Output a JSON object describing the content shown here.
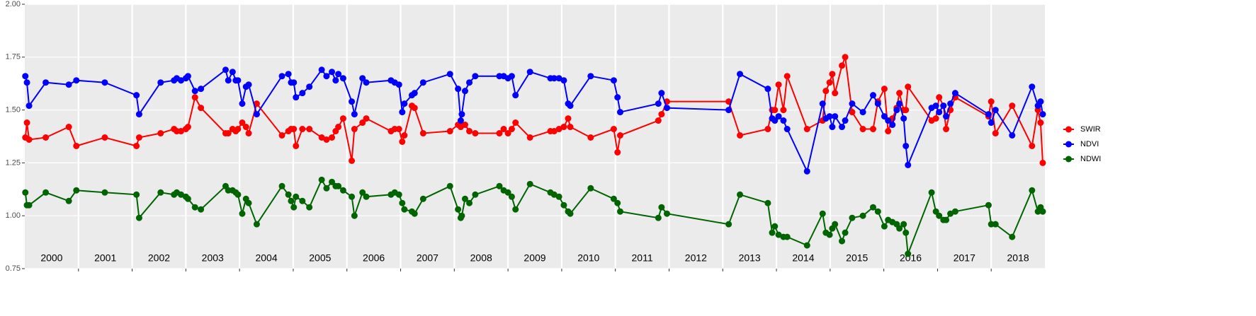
{
  "chart_data": {
    "type": "line",
    "xlim": [
      2000,
      2019
    ],
    "xticks": [
      2001,
      2002,
      2003,
      2004,
      2005,
      2006,
      2007,
      2008,
      2009,
      2010,
      2011,
      2012,
      2013,
      2014,
      2015,
      2016,
      2017,
      2018
    ],
    "ylim": [
      0.75,
      2
    ],
    "yticks": [
      0.75,
      {
        "value": 1,
        "label": "1.00"
      },
      1.25,
      {
        "value": 1.5,
        "label": "1.50"
      },
      1.75,
      {
        "value": 2,
        "label": "2.00"
      }
    ],
    "grid": true,
    "legend": "right",
    "year_labels": [
      "2000",
      "2001",
      "2002",
      "2003",
      "2004",
      "2005",
      "2006",
      "2007",
      "2008",
      "2009",
      "2010",
      "2011",
      "2012",
      "2013",
      "2014",
      "2015",
      "2016",
      "2017",
      "2018"
    ],
    "x": [
      2000.01,
      2000.04,
      2000.08,
      2000.39,
      2000.82,
      2000.96,
      2001.49,
      2002.08,
      2002.13,
      2002.53,
      2002.78,
      2002.83,
      2002.91,
      2003.0,
      2003.04,
      2003.17,
      2003.28,
      2003.74,
      2003.79,
      2003.87,
      2003.93,
      2003.97,
      2004.05,
      2004.12,
      2004.17,
      2004.32,
      2004.79,
      2004.91,
      2004.96,
      2005.01,
      2005.05,
      2005.17,
      2005.3,
      2005.53,
      2005.62,
      2005.72,
      2005.79,
      2005.84,
      2005.93,
      2006.09,
      2006.14,
      2006.29,
      2006.36,
      2006.82,
      2006.89,
      2006.97,
      2007.03,
      2007.07,
      2007.21,
      2007.26,
      2007.42,
      2007.92,
      2008.07,
      2008.12,
      2008.14,
      2008.2,
      2008.28,
      2008.39,
      2008.84,
      2008.92,
      2009.0,
      2009.07,
      2009.14,
      2009.41,
      2009.79,
      2009.86,
      2009.95,
      2010.04,
      2010.12,
      2010.16,
      2010.54,
      2010.97,
      2011.04,
      2011.09,
      2011.8,
      2011.86,
      2011.96,
      2013.11,
      2013.32,
      2013.84,
      2013.92,
      2013.97,
      2014.04,
      2014.13,
      2014.2,
      2014.57,
      2014.86,
      2014.92,
      2014.99,
      2015.04,
      2015.09,
      2015.22,
      2015.28,
      2015.41,
      2015.61,
      2015.8,
      2015.89,
      2016.01,
      2016.08,
      2016.16,
      2016.24,
      2016.29,
      2016.37,
      2016.41,
      2016.45,
      2016.89,
      2016.97,
      2017.03,
      2017.11,
      2017.16,
      2017.24,
      2017.33,
      2017.95,
      2018.0,
      2018.08,
      2018.39,
      2018.76,
      2018.87,
      2018.92,
      2018.96
    ],
    "series": [
      {
        "name": "SWIR",
        "color": "#ff0000",
        "values": [
          1.37,
          1.44,
          1.36,
          1.37,
          1.42,
          1.33,
          1.37,
          1.33,
          1.37,
          1.39,
          1.41,
          1.4,
          1.4,
          1.41,
          1.42,
          1.56,
          1.51,
          1.39,
          1.39,
          1.41,
          1.4,
          1.41,
          1.44,
          1.42,
          1.39,
          1.53,
          1.38,
          1.4,
          1.41,
          1.41,
          1.33,
          1.41,
          1.41,
          1.37,
          1.36,
          1.37,
          1.4,
          1.42,
          1.46,
          1.26,
          1.41,
          1.44,
          1.46,
          1.4,
          1.41,
          1.41,
          1.35,
          1.38,
          1.52,
          1.51,
          1.39,
          1.4,
          1.43,
          1.42,
          1.43,
          1.43,
          1.4,
          1.39,
          1.39,
          1.41,
          1.39,
          1.41,
          1.44,
          1.37,
          1.4,
          1.4,
          1.41,
          1.42,
          1.46,
          1.42,
          1.37,
          1.41,
          1.3,
          1.38,
          1.45,
          1.48,
          1.54,
          1.54,
          1.38,
          1.41,
          1.5,
          1.5,
          1.62,
          1.5,
          1.66,
          1.41,
          1.45,
          1.59,
          1.63,
          1.67,
          1.58,
          1.71,
          1.75,
          1.49,
          1.41,
          1.41,
          1.54,
          1.6,
          1.4,
          1.46,
          1.51,
          1.58,
          1.5,
          1.5,
          1.61,
          1.45,
          1.46,
          1.56,
          1.52,
          1.41,
          1.5,
          1.56,
          1.47,
          1.54,
          1.39,
          1.52,
          1.33,
          1.5,
          1.44,
          1.25
        ]
      },
      {
        "name": "NDVI",
        "color": "#0000ff",
        "values": [
          1.66,
          1.63,
          1.52,
          1.63,
          1.62,
          1.64,
          1.63,
          1.57,
          1.48,
          1.63,
          1.64,
          1.65,
          1.64,
          1.65,
          1.66,
          1.59,
          1.6,
          1.69,
          1.64,
          1.68,
          1.64,
          1.64,
          1.53,
          1.61,
          1.62,
          1.48,
          1.66,
          1.67,
          1.63,
          1.63,
          1.56,
          1.58,
          1.61,
          1.69,
          1.66,
          1.68,
          1.64,
          1.67,
          1.65,
          1.54,
          1.48,
          1.65,
          1.63,
          1.64,
          1.63,
          1.62,
          1.49,
          1.53,
          1.57,
          1.58,
          1.63,
          1.67,
          1.6,
          1.45,
          1.48,
          1.59,
          1.63,
          1.66,
          1.66,
          1.66,
          1.65,
          1.66,
          1.57,
          1.68,
          1.65,
          1.65,
          1.65,
          1.64,
          1.53,
          1.52,
          1.66,
          1.64,
          1.56,
          1.49,
          1.53,
          1.58,
          1.51,
          1.5,
          1.67,
          1.6,
          1.46,
          1.45,
          1.47,
          1.45,
          1.41,
          1.21,
          1.53,
          1.46,
          1.47,
          1.42,
          1.47,
          1.42,
          1.45,
          1.53,
          1.49,
          1.57,
          1.53,
          1.47,
          1.45,
          1.43,
          1.5,
          1.53,
          1.46,
          1.33,
          1.24,
          1.51,
          1.52,
          1.49,
          1.52,
          1.47,
          1.53,
          1.58,
          1.48,
          1.44,
          1.5,
          1.38,
          1.61,
          1.52,
          1.54,
          1.48
        ]
      },
      {
        "name": "NDWI",
        "color": "#006400",
        "values": [
          1.11,
          1.05,
          1.05,
          1.11,
          1.07,
          1.12,
          1.11,
          1.1,
          0.99,
          1.11,
          1.1,
          1.11,
          1.1,
          1.09,
          1.08,
          1.04,
          1.03,
          1.14,
          1.12,
          1.12,
          1.11,
          1.1,
          1.01,
          1.08,
          1.06,
          0.96,
          1.14,
          1.1,
          1.07,
          1.04,
          1.09,
          1.07,
          1.04,
          1.17,
          1.13,
          1.16,
          1.14,
          1.14,
          1.12,
          1.09,
          1.0,
          1.11,
          1.09,
          1.1,
          1.11,
          1.1,
          1.06,
          1.03,
          1.02,
          1.01,
          1.08,
          1.14,
          1.03,
          0.99,
          1.0,
          1.08,
          1.06,
          1.1,
          1.14,
          1.12,
          1.11,
          1.09,
          1.03,
          1.15,
          1.11,
          1.1,
          1.09,
          1.05,
          1.02,
          1.01,
          1.13,
          1.08,
          1.06,
          1.02,
          0.99,
          1.04,
          1.01,
          0.96,
          1.1,
          1.06,
          0.92,
          0.95,
          0.91,
          0.9,
          0.9,
          0.86,
          1.01,
          0.92,
          0.91,
          0.94,
          0.96,
          0.88,
          0.92,
          0.99,
          1.0,
          1.04,
          1.02,
          0.95,
          0.98,
          0.97,
          0.96,
          0.94,
          0.96,
          0.92,
          0.82,
          1.11,
          1.02,
          1.0,
          0.98,
          0.98,
          1.01,
          1.02,
          1.05,
          0.96,
          0.96,
          0.9,
          1.12,
          1.02,
          1.04,
          1.02
        ]
      }
    ]
  }
}
